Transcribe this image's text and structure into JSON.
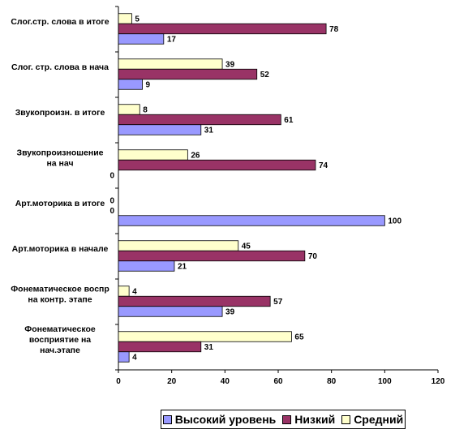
{
  "chart_data": {
    "type": "bar",
    "orientation": "horizontal",
    "categories": [
      [
        "Слог.стр. слова в итоге"
      ],
      [
        "Слог. стр. слова в нача"
      ],
      [
        "Звукопроизн. в итоге"
      ],
      [
        "Звукопроизношение",
        "на нач"
      ],
      [
        "Арт.моторика в итоге"
      ],
      [
        "Арт.моторика в начале"
      ],
      [
        "Фонематическое воспр",
        "на контр. этапе"
      ],
      [
        "Фонематическое",
        "восприятие на",
        "нач.этапе"
      ]
    ],
    "series": [
      {
        "name": "Средний",
        "color": "#ffffcc",
        "values": [
          5,
          39,
          8,
          26,
          0,
          45,
          4,
          65
        ]
      },
      {
        "name": "Низкий",
        "color": "#993366",
        "values": [
          78,
          52,
          61,
          74,
          0,
          70,
          57,
          31
        ]
      },
      {
        "name": "Высокий уровень",
        "color": "#9999ff",
        "values": [
          17,
          9,
          31,
          0,
          100,
          21,
          39,
          4
        ]
      }
    ],
    "xlim": [
      0,
      120
    ],
    "xticks": [
      0,
      20,
      40,
      60,
      80,
      100,
      120
    ],
    "legend": {
      "position": "bottom",
      "order": [
        "Высокий уровень",
        "Низкий",
        "Средний"
      ]
    },
    "grid": false
  }
}
